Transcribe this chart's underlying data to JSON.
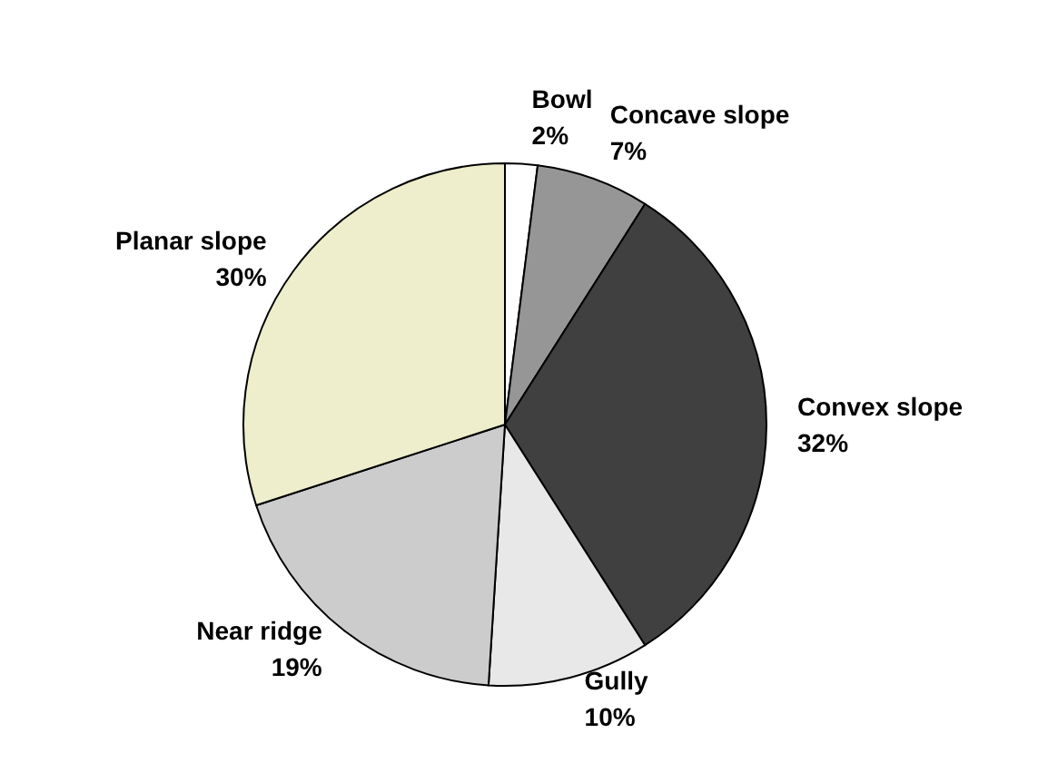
{
  "chart_data": {
    "type": "pie",
    "categories": [
      "Bowl",
      "Concave slope",
      "Convex slope",
      "Gully",
      "Near ridge",
      "Planar slope"
    ],
    "values": [
      2,
      7,
      32,
      10,
      19,
      30
    ],
    "value_labels": [
      "2%",
      "7%",
      "32%",
      "10%",
      "19%",
      "30%"
    ],
    "colors": [
      "#ffffff",
      "#969696",
      "#404040",
      "#e8e8e8",
      "#cccccc",
      "#eeeecc"
    ],
    "legend": false
  }
}
